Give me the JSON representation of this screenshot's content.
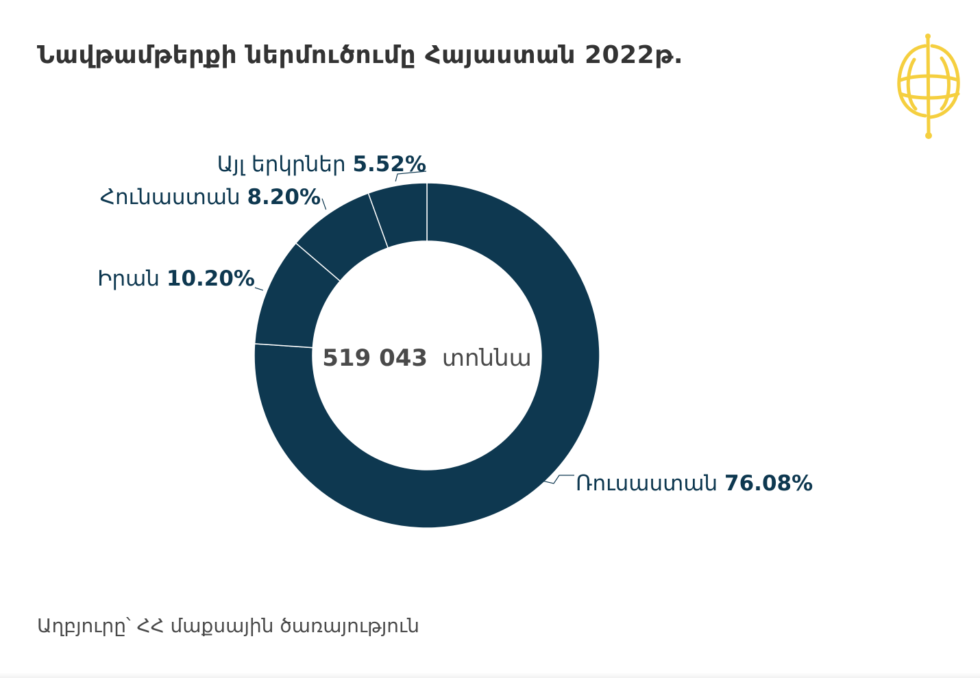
{
  "title": "Նավթամթերքի ներմուծումը Հայաստան 2022թ.",
  "source": "Աղբյուրը՝ ՀՀ մաքսային ծառայություն",
  "logo_icon": "yellow-globe-logo-icon",
  "colors": {
    "slice": "#0e3850",
    "label": "#0e3850",
    "center": "#4a4a4a",
    "logo": "#f5cf3f"
  },
  "chart_data": {
    "type": "pie",
    "variant": "donut",
    "center_value": "519 043",
    "center_unit": "տոննա",
    "slices": [
      {
        "name": "Ռուսաստան",
        "value": 76.08,
        "label": "76.08%"
      },
      {
        "name": "Իրան",
        "value": 10.2,
        "label": "10.20%"
      },
      {
        "name": "Հունաստան",
        "value": 8.2,
        "label": "8.20%"
      },
      {
        "name": "Այլ երկրներ",
        "value": 5.52,
        "label": "5.52%"
      }
    ]
  }
}
